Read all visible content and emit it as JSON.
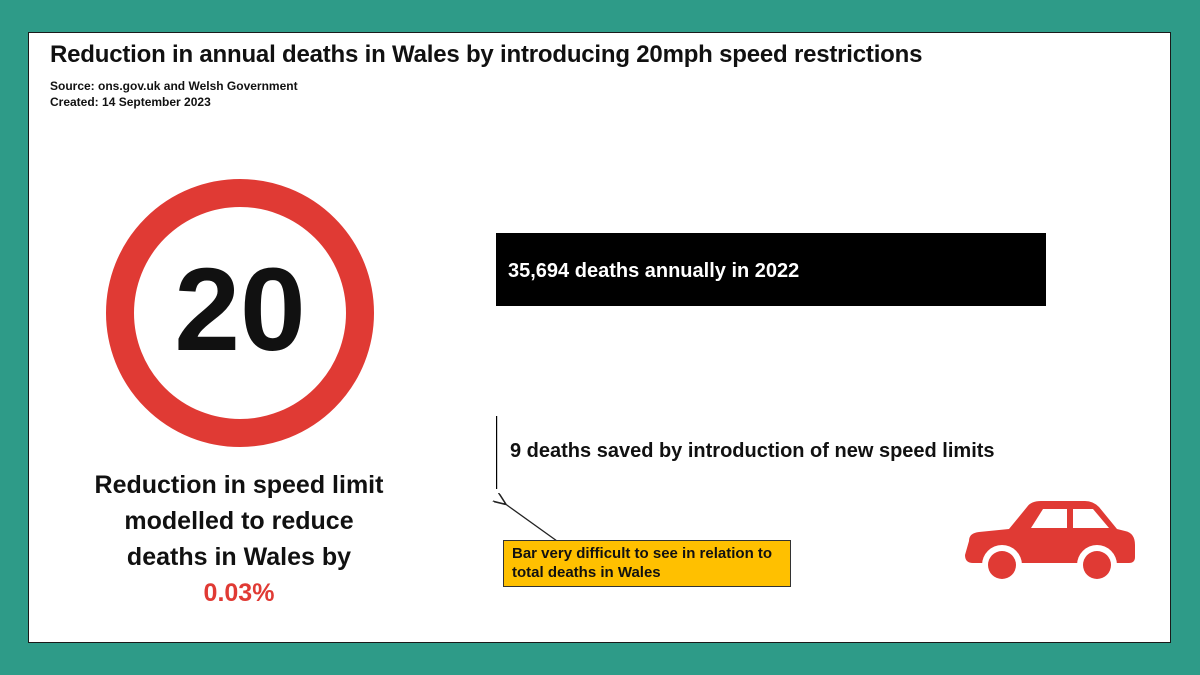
{
  "header": {
    "title": "Reduction in annual deaths in Wales by introducing 20mph speed restrictions",
    "source": "Source: ons.gov.uk and Welsh Government",
    "created": "Created: 14 September 2023"
  },
  "sign": {
    "number": "20",
    "ring_color": "#e03a34",
    "icon": "speed-limit-sign-icon"
  },
  "caption": {
    "text": "Reduction in speed limit modelled to reduce deaths in Wales by ",
    "percent": "0.03%",
    "percent_color": "#e03a34"
  },
  "chart_data": {
    "type": "bar",
    "orientation": "horizontal",
    "categories": [
      "35,694 deaths annually in 2022",
      "9 deaths saved by introduction of new speed limits"
    ],
    "values": [
      35694,
      9
    ],
    "xlim": [
      0,
      35694
    ],
    "grid": false,
    "bar_color": "#000000",
    "annotation": "Bar very difficult to see in relation to total deaths in Wales",
    "annotation_color": "#ffc000"
  },
  "decor": {
    "car_icon": "car-icon",
    "car_color": "#e03a34"
  }
}
